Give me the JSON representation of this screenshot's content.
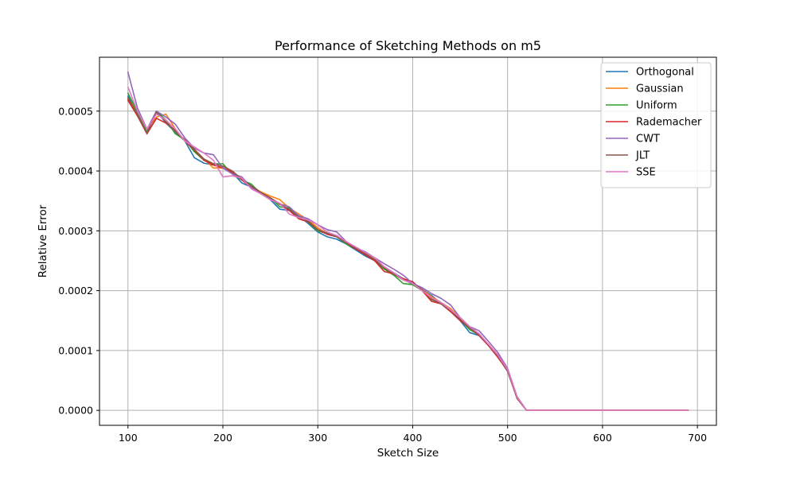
{
  "chart_data": {
    "type": "line",
    "title": "Performance of Sketching Methods on m5",
    "xlabel": "Sketch Size",
    "ylabel": "Relative Error",
    "xlim": [
      70,
      720
    ],
    "ylim": [
      -2.5e-05,
      0.00059
    ],
    "xticks": [
      100,
      200,
      300,
      400,
      500,
      600,
      700
    ],
    "xtick_labels": [
      "100",
      "200",
      "300",
      "400",
      "500",
      "600",
      "700"
    ],
    "yticks": [
      0,
      0.0001,
      0.0002,
      0.0003,
      0.0004,
      0.0005
    ],
    "ytick_labels": [
      "0.0000",
      "0.0001",
      "0.0002",
      "0.0003",
      "0.0004",
      "0.0005"
    ],
    "grid": true,
    "legend_position": "top-right",
    "x": [
      100,
      110,
      120,
      130,
      140,
      150,
      160,
      170,
      180,
      190,
      200,
      210,
      220,
      230,
      240,
      250,
      260,
      270,
      280,
      290,
      300,
      310,
      320,
      330,
      340,
      350,
      360,
      370,
      380,
      390,
      400,
      410,
      420,
      430,
      440,
      450,
      460,
      470,
      480,
      490,
      500,
      510,
      520,
      530,
      540,
      550,
      560,
      570,
      580,
      590,
      600,
      610,
      620,
      630,
      640,
      650,
      660,
      670,
      680,
      690
    ],
    "series": [
      {
        "name": "Orthogonal",
        "color": "#1f77b4",
        "values": [
          0.000525,
          0.000495,
          0.000465,
          0.0005,
          0.00048,
          0.000465,
          0.00045,
          0.000422,
          0.000413,
          0.00041,
          0.000405,
          0.000397,
          0.00038,
          0.000373,
          0.000362,
          0.000352,
          0.000336,
          0.000334,
          0.000325,
          0.000312,
          0.000298,
          0.00029,
          0.000286,
          0.000278,
          0.000268,
          0.000258,
          0.00025,
          0.00024,
          0.00023,
          0.00022,
          0.00021,
          0.000202,
          0.000192,
          0.000178,
          0.000165,
          0.00015,
          0.00013,
          0.000125,
          0.000108,
          9e-05,
          6.5e-05,
          2e-05,
          0.0,
          0.0,
          0.0,
          0.0,
          0.0,
          0.0,
          0.0,
          0.0,
          0.0,
          0.0,
          0.0,
          0.0,
          0.0,
          0.0,
          0.0,
          0.0,
          0.0,
          0.0
        ]
      },
      {
        "name": "Gaussian",
        "color": "#ff7f0e",
        "values": [
          0.00052,
          0.0005,
          0.00047,
          0.00049,
          0.000495,
          0.00047,
          0.00045,
          0.000435,
          0.00042,
          0.000405,
          0.000405,
          0.000398,
          0.000385,
          0.000375,
          0.000365,
          0.000358,
          0.000352,
          0.000338,
          0.000328,
          0.000318,
          0.000305,
          0.000295,
          0.000292,
          0.00028,
          0.000272,
          0.000262,
          0.000252,
          0.000238,
          0.000228,
          0.000218,
          0.000212,
          0.000202,
          0.00019,
          0.00018,
          0.00017,
          0.000155,
          0.00014,
          0.000125,
          0.00011,
          9.2e-05,
          6.8e-05,
          2.2e-05,
          0.0,
          0.0,
          0.0,
          0.0,
          0.0,
          0.0,
          0.0,
          0.0,
          0.0,
          0.0,
          0.0,
          0.0,
          0.0,
          0.0,
          0.0,
          0.0,
          0.0,
          0.0
        ]
      },
      {
        "name": "Uniform",
        "color": "#2ca02c",
        "values": [
          0.00053,
          0.000498,
          0.000465,
          0.0005,
          0.000485,
          0.000462,
          0.000452,
          0.000432,
          0.000418,
          0.000412,
          0.000412,
          0.000395,
          0.000385,
          0.000378,
          0.000362,
          0.000355,
          0.00034,
          0.000338,
          0.000325,
          0.000314,
          0.0003,
          0.000295,
          0.00029,
          0.000278,
          0.00027,
          0.000262,
          0.00025,
          0.000236,
          0.000226,
          0.000212,
          0.00021,
          0.0002,
          0.000185,
          0.000178,
          0.000168,
          0.000152,
          0.000135,
          0.000126,
          0.00011,
          9e-05,
          6.6e-05,
          2e-05,
          0.0,
          0.0,
          0.0,
          0.0,
          0.0,
          0.0,
          0.0,
          0.0,
          0.0,
          0.0,
          0.0,
          0.0,
          0.0,
          0.0,
          0.0,
          0.0,
          0.0,
          0.0
        ]
      },
      {
        "name": "Rademacher",
        "color": "#d62728",
        "values": [
          0.000518,
          0.000492,
          0.000462,
          0.000488,
          0.00048,
          0.000468,
          0.00045,
          0.000435,
          0.000418,
          0.00041,
          0.000405,
          0.000398,
          0.000385,
          0.000372,
          0.000364,
          0.000355,
          0.000345,
          0.000334,
          0.00032,
          0.000315,
          0.000302,
          0.000294,
          0.00029,
          0.00028,
          0.00027,
          0.00026,
          0.00025,
          0.000232,
          0.000228,
          0.00022,
          0.000215,
          0.0002,
          0.000182,
          0.000178,
          0.000165,
          0.00015,
          0.000138,
          0.000125,
          0.000108,
          8.8e-05,
          6.6e-05,
          2e-05,
          0.0,
          0.0,
          0.0,
          0.0,
          0.0,
          0.0,
          0.0,
          0.0,
          0.0,
          0.0,
          0.0,
          0.0,
          0.0,
          0.0,
          0.0,
          0.0,
          0.0,
          0.0
        ]
      },
      {
        "name": "CWT",
        "color": "#9467bd",
        "values": [
          0.000565,
          0.000505,
          0.00047,
          0.0005,
          0.00049,
          0.000478,
          0.000455,
          0.000438,
          0.00043,
          0.000427,
          0.000405,
          0.000395,
          0.00039,
          0.000372,
          0.000362,
          0.000355,
          0.000345,
          0.00034,
          0.000325,
          0.00032,
          0.00031,
          0.000302,
          0.000298,
          0.000282,
          0.000272,
          0.000265,
          0.000255,
          0.000245,
          0.000236,
          0.000226,
          0.000212,
          0.000205,
          0.000195,
          0.000187,
          0.000176,
          0.000155,
          0.00014,
          0.000133,
          0.000115,
          9.6e-05,
          7e-05,
          2.3e-05,
          0.0,
          0.0,
          0.0,
          0.0,
          0.0,
          0.0,
          0.0,
          0.0,
          0.0,
          0.0,
          0.0,
          0.0,
          0.0,
          0.0,
          0.0,
          0.0,
          0.0,
          0.0
        ]
      },
      {
        "name": "JLT",
        "color": "#8c564b",
        "values": [
          0.000522,
          0.000494,
          0.000463,
          0.000498,
          0.000482,
          0.000466,
          0.000452,
          0.000436,
          0.00042,
          0.000412,
          0.000408,
          0.0004,
          0.000386,
          0.000375,
          0.000364,
          0.000355,
          0.000344,
          0.000336,
          0.000322,
          0.000316,
          0.000302,
          0.000296,
          0.00029,
          0.00028,
          0.000272,
          0.000262,
          0.000252,
          0.000238,
          0.000228,
          0.000218,
          0.000212,
          0.000202,
          0.000186,
          0.000178,
          0.000167,
          0.000152,
          0.000138,
          0.000126,
          0.00011,
          9e-05,
          6.7e-05,
          2.1e-05,
          0.0,
          0.0,
          0.0,
          0.0,
          0.0,
          0.0,
          0.0,
          0.0,
          0.0,
          0.0,
          0.0,
          0.0,
          0.0,
          0.0,
          0.0,
          0.0,
          0.0,
          0.0
        ]
      },
      {
        "name": "SSE",
        "color": "#e377c2",
        "values": [
          0.00054,
          0.0005,
          0.00047,
          0.000495,
          0.000485,
          0.00047,
          0.00045,
          0.00044,
          0.00043,
          0.000418,
          0.00039,
          0.000392,
          0.000388,
          0.00037,
          0.000362,
          0.000352,
          0.000346,
          0.000328,
          0.000322,
          0.000318,
          0.00031,
          0.000298,
          0.000292,
          0.000282,
          0.000273,
          0.000264,
          0.000255,
          0.00024,
          0.00023,
          0.000218,
          0.000212,
          0.0002,
          0.000188,
          0.00018,
          0.000168,
          0.000155,
          0.00014,
          0.000128,
          0.00011,
          9.2e-05,
          6.8e-05,
          2.2e-05,
          0.0,
          0.0,
          0.0,
          0.0,
          0.0,
          0.0,
          0.0,
          0.0,
          0.0,
          0.0,
          0.0,
          0.0,
          0.0,
          0.0,
          0.0,
          0.0,
          0.0,
          0.0
        ]
      }
    ]
  }
}
